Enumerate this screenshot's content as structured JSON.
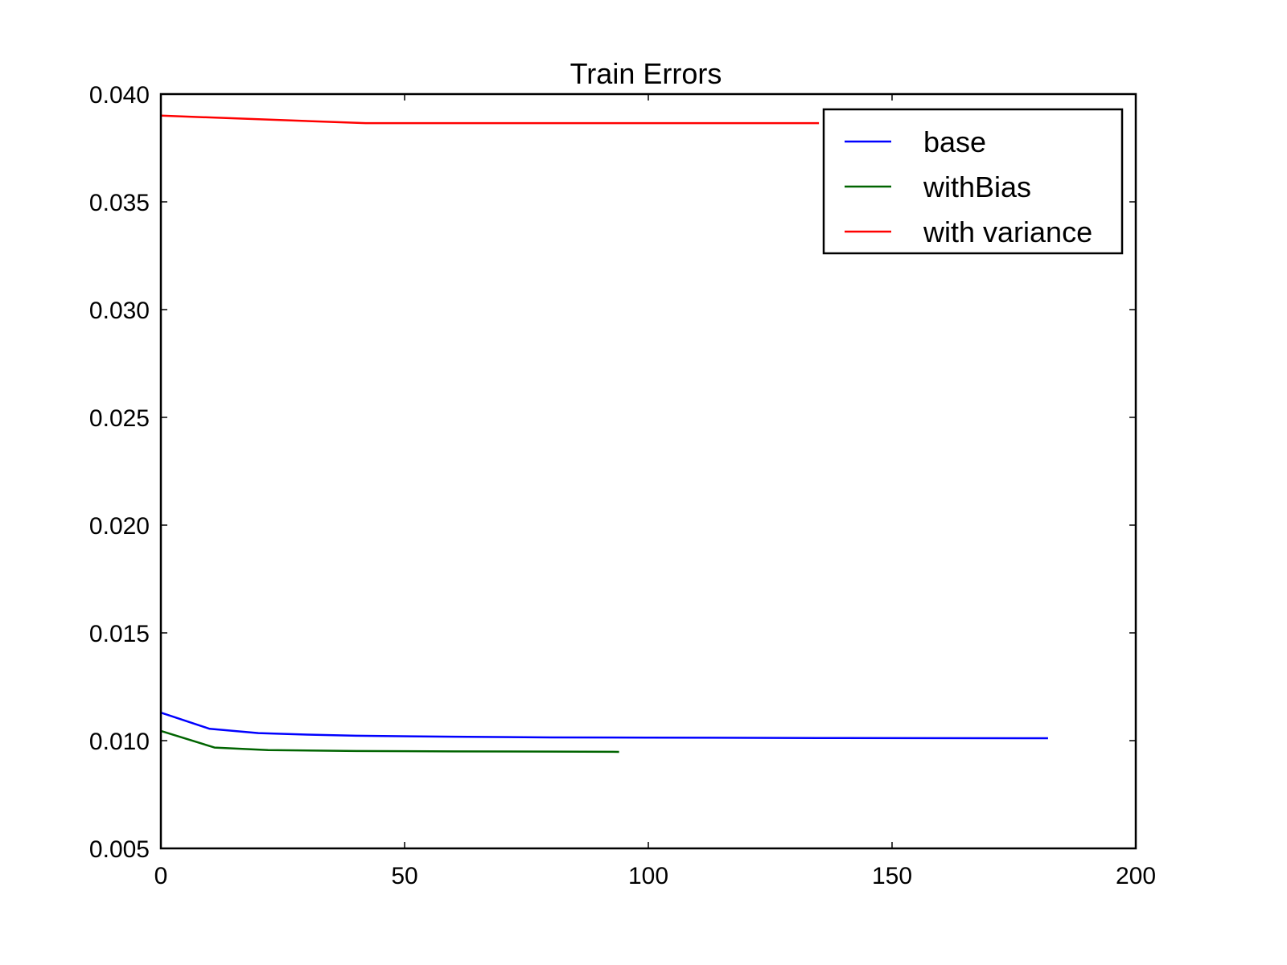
{
  "chart_data": {
    "type": "line",
    "title": "Train Errors",
    "xlabel": "",
    "ylabel": "",
    "xlim": [
      0,
      200
    ],
    "ylim": [
      0.005,
      0.04
    ],
    "x_ticks": [
      0,
      50,
      100,
      150,
      200
    ],
    "x_tick_labels": [
      "0",
      "50",
      "100",
      "150",
      "200"
    ],
    "y_ticks": [
      0.005,
      0.01,
      0.015,
      0.02,
      0.025,
      0.03,
      0.035,
      0.04
    ],
    "y_tick_labels": [
      "0.005",
      "0.010",
      "0.015",
      "0.020",
      "0.025",
      "0.030",
      "0.035",
      "0.040"
    ],
    "grid": false,
    "legend_position": "top-right",
    "series": [
      {
        "name": "base",
        "color": "#0000ff",
        "x": [
          0,
          10,
          20,
          30,
          40,
          60,
          80,
          100,
          140,
          182
        ],
        "y": [
          0.0113,
          0.01055,
          0.01035,
          0.01028,
          0.01023,
          0.01018,
          0.01015,
          0.01014,
          0.01012,
          0.01011
        ]
      },
      {
        "name": "withBias",
        "color": "#006400",
        "x": [
          0,
          11,
          22,
          40,
          60,
          80,
          94
        ],
        "y": [
          0.01045,
          0.00968,
          0.00956,
          0.00952,
          0.0095,
          0.00949,
          0.00948
        ]
      },
      {
        "name": "with variance",
        "color": "#ff0000",
        "x": [
          0,
          42,
          80,
          120,
          135
        ],
        "y": [
          0.039,
          0.03865,
          0.03865,
          0.03865,
          0.03865
        ]
      }
    ]
  }
}
